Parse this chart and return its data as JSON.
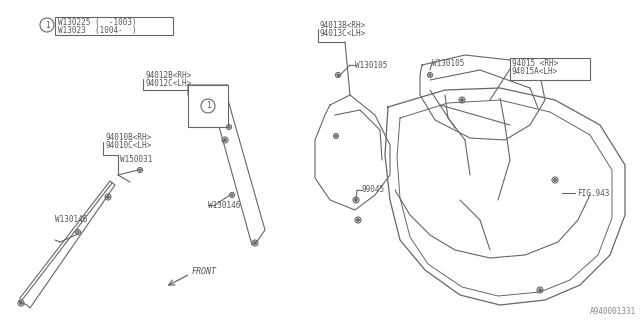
{
  "bg_color": "#ffffff",
  "line_color": "#666666",
  "text_color": "#555555",
  "title_code": "A940001331",
  "legend_lines": [
    "W130225 (  -1003)",
    "W13023  (1004-  )"
  ],
  "parts": {
    "94010B_RH": "94010B<RH>",
    "94010C_LH": "94010C<LH>",
    "W150031": "W150031",
    "W130146_left": "W130146",
    "W130146_center": "W130146",
    "94012B_RH": "94012B<RH>",
    "94012C_LH": "94012C<LH>",
    "W130105_mid": "W130105",
    "94013B_RH": "94013B<RH>",
    "94013C_LH": "94013C<LH>",
    "W130105_top": "W130105",
    "99045": "99045",
    "94015_RH": "94015 <RH>",
    "94015A_LH": "94015A<LH>",
    "FIG943": "FIG.943",
    "FRONT": "FRONT"
  },
  "figsize": [
    6.4,
    3.2
  ],
  "dpi": 100
}
